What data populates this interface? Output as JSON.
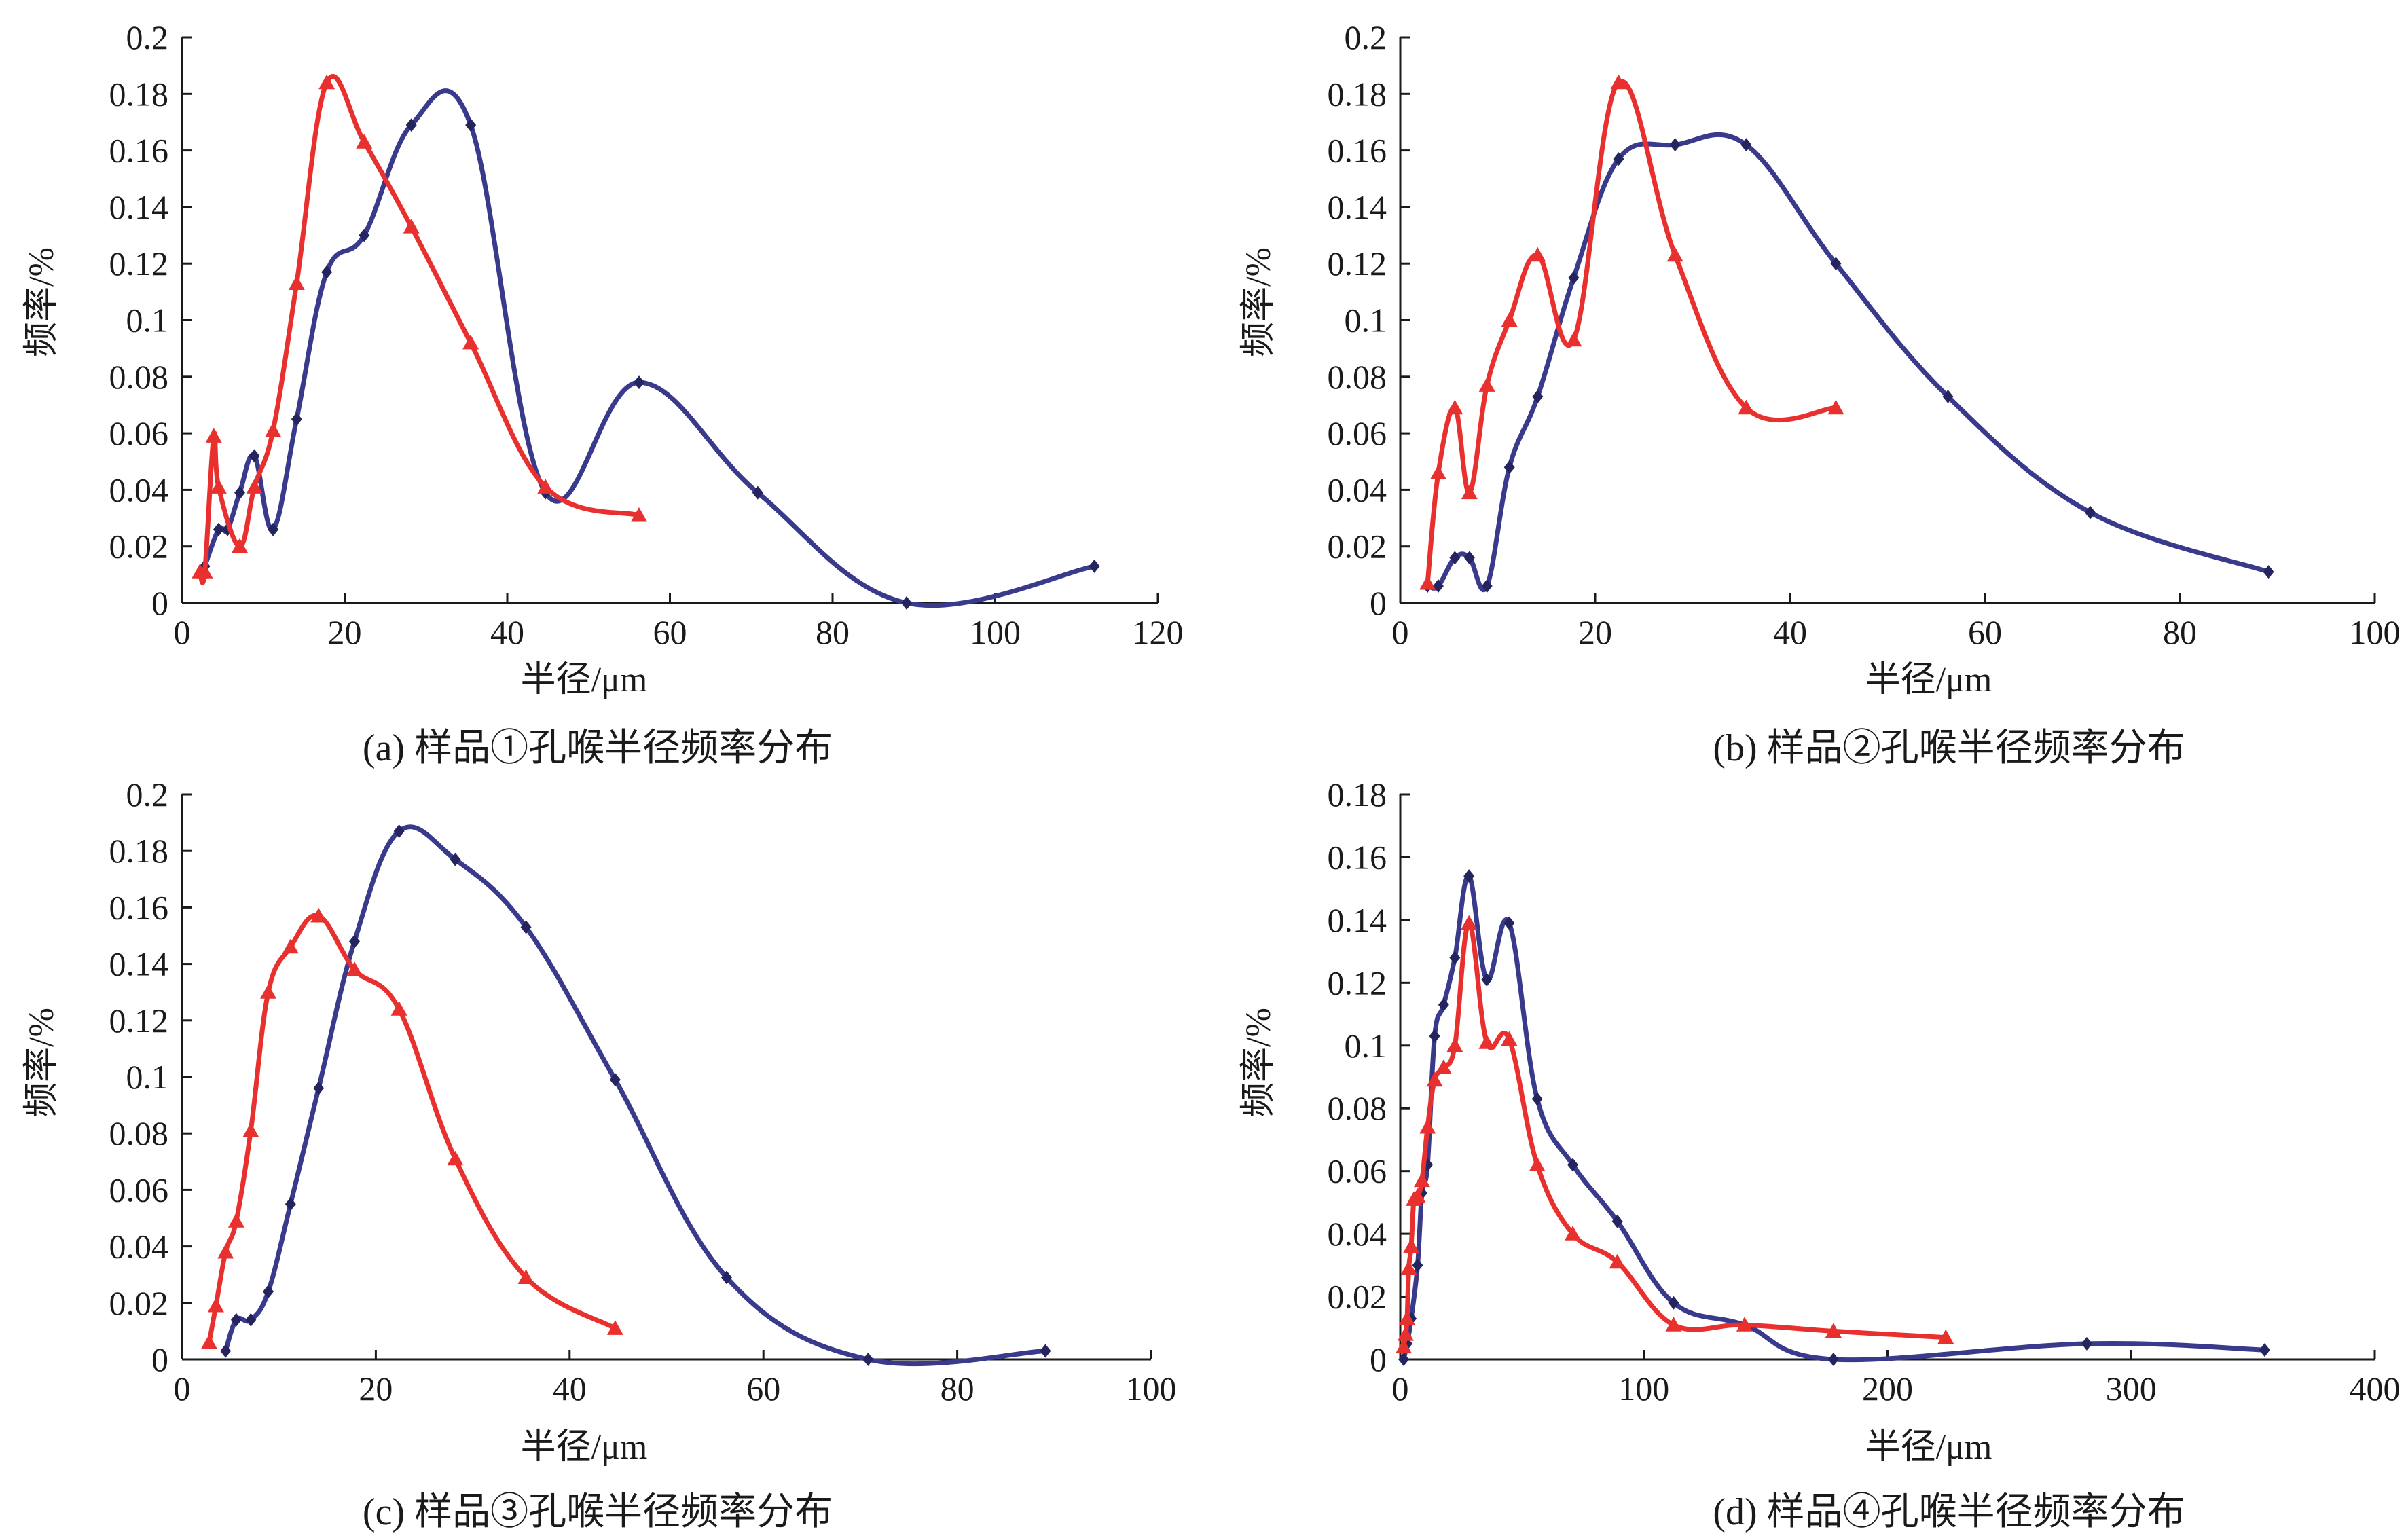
{
  "figure": {
    "colors": {
      "series_blue": "#3a3a8c",
      "series_red": "#e8312f",
      "axis": "#1a1a1a"
    },
    "markers": {
      "series_blue": "diamond",
      "series_red": "triangle"
    }
  },
  "chart_data": [
    {
      "id": "a",
      "type": "line",
      "caption": "(a) 样品①孔喉半径频率分布",
      "xlabel": "半径/μm",
      "ylabel": "频率/%",
      "xlim": [
        0,
        120
      ],
      "ylim": [
        0,
        0.2
      ],
      "xticks": [
        0,
        20,
        40,
        60,
        80,
        100,
        120
      ],
      "yticks": [
        0,
        0.02,
        0.04,
        0.06,
        0.08,
        0.1,
        0.12,
        0.14,
        0.16,
        0.18,
        0.2
      ],
      "ytick_labels": [
        "0",
        "0.02",
        "0.04",
        "0.06",
        "0.08",
        "0.1",
        "0.12",
        "0.14",
        "0.16",
        "0.18",
        "0.2"
      ],
      "grid": false,
      "series": [
        {
          "color": "#3a3a8c",
          "marker": "diamond",
          "x": [
            2.8,
            4.5,
            5.6,
            7.1,
            8.9,
            11.2,
            14.1,
            17.8,
            22.4,
            28.2,
            35.5,
            44.7,
            56.2,
            70.8,
            89.1,
            112.2
          ],
          "y": [
            0.013,
            0.026,
            0.026,
            0.039,
            0.052,
            0.026,
            0.065,
            0.117,
            0.13,
            0.169,
            0.169,
            0.039,
            0.078,
            0.039,
            0.0,
            0.013
          ]
        },
        {
          "color": "#e8312f",
          "marker": "triangle",
          "x": [
            2.2,
            2.8,
            3.9,
            4.5,
            7.1,
            8.9,
            11.2,
            14.1,
            17.8,
            22.4,
            28.2,
            35.5,
            44.7,
            56.2
          ],
          "y": [
            0.011,
            0.011,
            0.059,
            0.041,
            0.02,
            0.041,
            0.061,
            0.113,
            0.184,
            0.163,
            0.133,
            0.092,
            0.041,
            0.031
          ]
        }
      ]
    },
    {
      "id": "b",
      "type": "line",
      "caption": "(b) 样品②孔喉半径频率分布",
      "xlabel": "半径/μm",
      "ylabel": "频率/%",
      "xlim": [
        0,
        100
      ],
      "ylim": [
        0,
        0.2
      ],
      "xticks": [
        0,
        20,
        40,
        60,
        80,
        100
      ],
      "yticks": [
        0,
        0.02,
        0.04,
        0.06,
        0.08,
        0.1,
        0.12,
        0.14,
        0.16,
        0.18,
        0.2
      ],
      "ytick_labels": [
        "0",
        "0.02",
        "0.04",
        "0.06",
        "0.08",
        "0.1",
        "0.12",
        "0.14",
        "0.16",
        "0.18",
        "0.2"
      ],
      "grid": false,
      "series": [
        {
          "color": "#3a3a8c",
          "marker": "diamond",
          "x": [
            2.8,
            3.9,
            5.6,
            7.1,
            8.9,
            11.2,
            14.1,
            17.8,
            22.4,
            28.2,
            35.5,
            44.7,
            56.2,
            70.8,
            89.1
          ],
          "y": [
            0.006,
            0.006,
            0.016,
            0.016,
            0.006,
            0.048,
            0.073,
            0.115,
            0.157,
            0.162,
            0.162,
            0.12,
            0.073,
            0.032,
            0.011
          ]
        },
        {
          "color": "#e8312f",
          "marker": "triangle",
          "x": [
            2.8,
            3.9,
            5.6,
            7.1,
            8.9,
            11.2,
            14.1,
            17.8,
            22.4,
            28.2,
            35.5,
            44.7
          ],
          "y": [
            0.007,
            0.046,
            0.069,
            0.039,
            0.077,
            0.1,
            0.123,
            0.093,
            0.184,
            0.123,
            0.069,
            0.069
          ]
        }
      ]
    },
    {
      "id": "c",
      "type": "line",
      "caption": "(c) 样品③孔喉半径频率分布",
      "xlabel": "半径/μm",
      "ylabel": "频率/%",
      "xlim": [
        0,
        100
      ],
      "ylim": [
        0,
        0.2
      ],
      "xticks": [
        0,
        20,
        40,
        60,
        80,
        100
      ],
      "yticks": [
        0,
        0.02,
        0.04,
        0.06,
        0.08,
        0.1,
        0.12,
        0.14,
        0.16,
        0.18,
        0.2
      ],
      "ytick_labels": [
        "0",
        "0.02",
        "0.04",
        "0.06",
        "0.08",
        "0.1",
        "0.12",
        "0.14",
        "0.16",
        "0.18",
        "0.2"
      ],
      "grid": false,
      "series": [
        {
          "color": "#3a3a8c",
          "marker": "diamond",
          "x": [
            4.5,
            5.6,
            7.1,
            8.9,
            11.2,
            14.1,
            17.8,
            22.4,
            28.2,
            35.5,
            44.7,
            56.2,
            70.8,
            89.1
          ],
          "y": [
            0.003,
            0.014,
            0.014,
            0.024,
            0.055,
            0.096,
            0.148,
            0.187,
            0.177,
            0.153,
            0.099,
            0.029,
            0.0,
            0.003
          ]
        },
        {
          "color": "#e8312f",
          "marker": "triangle",
          "x": [
            2.8,
            3.5,
            4.5,
            5.6,
            7.1,
            8.9,
            11.2,
            14.1,
            17.8,
            22.4,
            28.2,
            35.5,
            44.7
          ],
          "y": [
            0.006,
            0.019,
            0.038,
            0.049,
            0.081,
            0.13,
            0.146,
            0.157,
            0.138,
            0.124,
            0.071,
            0.029,
            0.011
          ]
        }
      ]
    },
    {
      "id": "d",
      "type": "line",
      "caption": "(d) 样品④孔喉半径频率分布",
      "xlabel": "半径/μm",
      "ylabel": "频率/%",
      "xlim": [
        0,
        400
      ],
      "ylim": [
        0,
        0.18
      ],
      "xticks": [
        0,
        100,
        200,
        300,
        400
      ],
      "yticks": [
        0,
        0.02,
        0.04,
        0.06,
        0.08,
        0.1,
        0.12,
        0.14,
        0.16,
        0.18
      ],
      "ytick_labels": [
        "0",
        "0.02",
        "0.04",
        "0.06",
        "0.08",
        "0.1",
        "0.12",
        "0.14",
        "0.16",
        "0.18"
      ],
      "grid": false,
      "series": [
        {
          "color": "#3a3a8c",
          "marker": "diamond",
          "x": [
            1.4,
            2.8,
            4.5,
            7.1,
            8.9,
            11.2,
            14.1,
            17.8,
            22.4,
            28.2,
            35.5,
            44.7,
            56.2,
            70.8,
            89.1,
            112.2,
            141.3,
            177.8,
            281.8,
            354.8
          ],
          "y": [
            0.0,
            0.005,
            0.013,
            0.03,
            0.053,
            0.062,
            0.103,
            0.113,
            0.128,
            0.154,
            0.121,
            0.139,
            0.083,
            0.062,
            0.044,
            0.018,
            0.011,
            0.0,
            0.005,
            0.003
          ]
        },
        {
          "color": "#e8312f",
          "marker": "triangle",
          "x": [
            1.4,
            2.2,
            2.8,
            3.5,
            4.5,
            5.6,
            7.1,
            8.9,
            11.2,
            14.1,
            17.8,
            22.4,
            28.2,
            35.5,
            44.7,
            56.2,
            70.8,
            89.1,
            112.2,
            141.3,
            177.8,
            223.9
          ],
          "y": [
            0.004,
            0.008,
            0.013,
            0.029,
            0.036,
            0.051,
            0.052,
            0.057,
            0.074,
            0.089,
            0.093,
            0.1,
            0.139,
            0.101,
            0.102,
            0.062,
            0.04,
            0.031,
            0.011,
            0.011,
            0.009,
            0.007
          ]
        }
      ]
    }
  ]
}
